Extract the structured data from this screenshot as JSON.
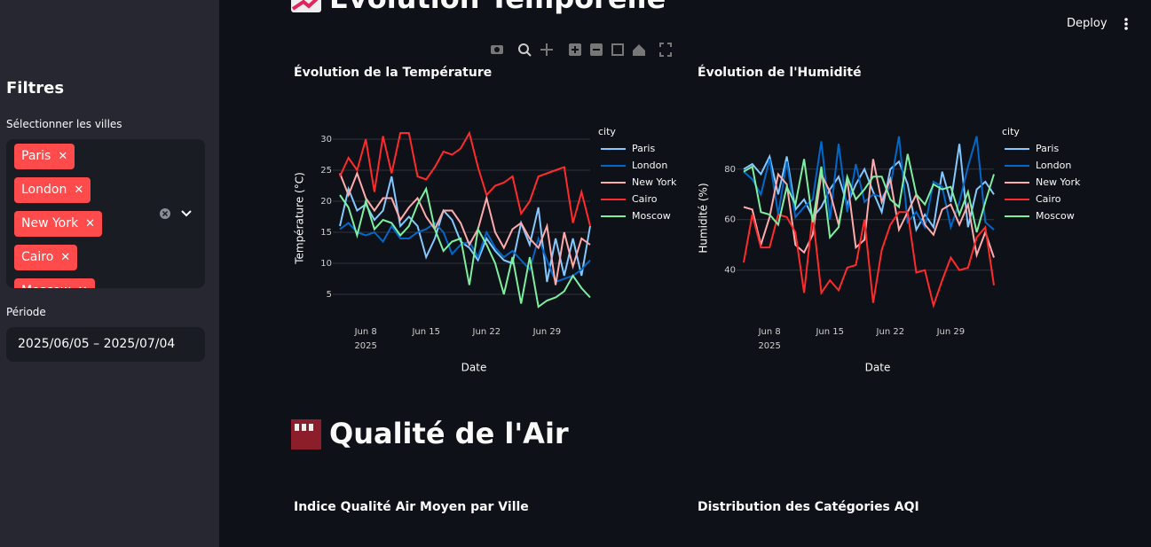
{
  "sidebar": {
    "title": "Filtres",
    "cities_label": "Sélectionner les villes",
    "cities": [
      "Paris",
      "London",
      "New York",
      "Cairo",
      "Moscow"
    ],
    "period_label": "Période",
    "period": "2025/06/05 – 2025/07/04"
  },
  "header": {
    "deploy": "Deploy"
  },
  "sections": [
    {
      "heading": "Évolution Temporelle"
    },
    {
      "heading": "Qualité de l'Air",
      "subheadings": [
        "Indice Qualité Air Moyen par Ville",
        "Distribution des Catégories AQI"
      ]
    }
  ],
  "chart_data": [
    {
      "type": "line",
      "title": "Évolution de la Température",
      "x_label": "Date",
      "y_label": "Température (°C)",
      "legend_title": "city",
      "x": [
        "2025-06-05",
        "2025-06-06",
        "2025-06-07",
        "2025-06-08",
        "2025-06-09",
        "2025-06-10",
        "2025-06-11",
        "2025-06-12",
        "2025-06-13",
        "2025-06-14",
        "2025-06-15",
        "2025-06-16",
        "2025-06-17",
        "2025-06-18",
        "2025-06-19",
        "2025-06-20",
        "2025-06-21",
        "2025-06-22",
        "2025-06-23",
        "2025-06-24",
        "2025-06-25",
        "2025-06-26",
        "2025-06-27",
        "2025-06-28",
        "2025-06-29",
        "2025-06-30",
        "2025-07-01",
        "2025-07-02",
        "2025-07-03",
        "2025-07-04"
      ],
      "xlim": [
        "2025-06-05",
        "2025-07-04"
      ],
      "xticks": [
        {
          "value": "2025-06-08",
          "label": "Jun 8",
          "sublabel": "2025"
        },
        {
          "value": "2025-06-15",
          "label": "Jun 15"
        },
        {
          "value": "2025-06-22",
          "label": "Jun 22"
        },
        {
          "value": "2025-06-29",
          "label": "Jun 29"
        }
      ],
      "ylim": [
        3,
        32.5
      ],
      "yticks": [
        5,
        10,
        15,
        20,
        25,
        30
      ],
      "grid": true,
      "series": [
        {
          "name": "Paris",
          "color": "#83c9ff",
          "values": [
            16,
            22,
            18.5,
            19.5,
            17,
            18.5,
            24,
            16,
            17.5,
            16,
            11,
            14,
            18.5,
            17,
            13.5,
            12.5,
            10.5,
            14,
            12,
            10.5,
            10,
            16.5,
            13,
            19,
            7,
            14,
            8,
            14,
            8,
            16
          ]
        },
        {
          "name": "London",
          "color": "#0068c9",
          "values": [
            15.5,
            16.5,
            15,
            14.5,
            15,
            13.5,
            16,
            14,
            14,
            15,
            15.5,
            16.5,
            15,
            11.5,
            13,
            13.5,
            11,
            15,
            12.5,
            11,
            12,
            10.5,
            9,
            14,
            10.5,
            7,
            7.5,
            8,
            9,
            10.5
          ]
        },
        {
          "name": "New York",
          "color": "#ffabab",
          "values": [
            24.5,
            21,
            24.5,
            20.5,
            18.5,
            20.5,
            20.5,
            17,
            19,
            20.5,
            17.5,
            15.5,
            18.5,
            18.5,
            16.5,
            13,
            15.5,
            20.5,
            15,
            12.5,
            15.5,
            16.5,
            14,
            12.5,
            16,
            6.5,
            15,
            9.5,
            14,
            13
          ]
        },
        {
          "name": "Cairo",
          "color": "#ff2b2b",
          "values": [
            24,
            27,
            25,
            30,
            21.5,
            30.5,
            24.5,
            31,
            31,
            24,
            23.5,
            25.5,
            28,
            27.5,
            28.5,
            31,
            25.5,
            21,
            22.5,
            23,
            24,
            18,
            20,
            24,
            24.5,
            25,
            25.5,
            16.5,
            21.5,
            16
          ]
        },
        {
          "name": "Moscow",
          "color": "#7defa1",
          "values": [
            21,
            19,
            14.5,
            20,
            15.5,
            17,
            16.5,
            14.5,
            16,
            19.5,
            22,
            15.5,
            12,
            13.5,
            14,
            6.5,
            15.5,
            13,
            10,
            5,
            11,
            3.5,
            11,
            3,
            4,
            4.5,
            5.5,
            8,
            6,
            4.5
          ]
        }
      ]
    },
    {
      "type": "line",
      "title": "Évolution de l'Humidité",
      "x_label": "Date",
      "y_label": "Humidité (%)",
      "legend_title": "city",
      "x": [
        "2025-06-05",
        "2025-06-06",
        "2025-06-07",
        "2025-06-08",
        "2025-06-09",
        "2025-06-10",
        "2025-06-11",
        "2025-06-12",
        "2025-06-13",
        "2025-06-14",
        "2025-06-15",
        "2025-06-16",
        "2025-06-17",
        "2025-06-18",
        "2025-06-19",
        "2025-06-20",
        "2025-06-21",
        "2025-06-22",
        "2025-06-23",
        "2025-06-24",
        "2025-06-25",
        "2025-06-26",
        "2025-06-27",
        "2025-06-28",
        "2025-06-29",
        "2025-06-30",
        "2025-07-01",
        "2025-07-02",
        "2025-07-03",
        "2025-07-04"
      ],
      "xlim": [
        "2025-06-05",
        "2025-07-04"
      ],
      "xticks": [
        {
          "value": "2025-06-08",
          "label": "Jun 8",
          "sublabel": "2025"
        },
        {
          "value": "2025-06-15",
          "label": "Jun 15"
        },
        {
          "value": "2025-06-22",
          "label": "Jun 22"
        },
        {
          "value": "2025-06-29",
          "label": "Jun 29"
        }
      ],
      "ylim": [
        25.5,
        98
      ],
      "yticks": [
        40,
        60,
        80
      ],
      "grid": true,
      "series": [
        {
          "name": "Paris",
          "color": "#83c9ff",
          "values": [
            80,
            82,
            78,
            85,
            70,
            85,
            64,
            68,
            61,
            65,
            72,
            77,
            66,
            74,
            80,
            71,
            63,
            80,
            83,
            74,
            56,
            62,
            57,
            79,
            67,
            90,
            57,
            72,
            75,
            70
          ]
        },
        {
          "name": "London",
          "color": "#0068c9",
          "values": [
            79,
            76,
            70,
            84,
            62,
            83,
            61,
            65,
            68,
            91,
            60,
            90,
            63,
            82,
            67,
            70,
            69,
            73,
            93,
            59,
            63,
            57,
            75,
            73,
            57,
            67,
            81,
            93,
            59,
            56
          ]
        },
        {
          "name": "New York",
          "color": "#ffabab",
          "values": [
            65,
            64,
            50,
            61,
            78,
            74,
            50,
            47,
            54,
            78,
            71,
            58,
            76,
            49,
            52,
            84,
            67,
            76,
            56,
            63,
            70,
            58,
            54,
            64,
            66,
            58,
            66,
            46,
            55,
            45
          ]
        },
        {
          "name": "Cairo",
          "color": "#ff2b2b",
          "values": [
            43,
            62,
            49,
            49,
            62,
            61,
            55,
            31,
            62,
            31,
            36,
            32,
            41,
            42,
            60,
            27,
            48,
            58,
            63,
            63,
            39,
            40,
            26,
            36,
            45,
            40,
            41,
            53,
            57,
            34
          ]
        },
        {
          "name": "Moscow",
          "color": "#7defa1",
          "values": [
            79,
            81,
            63,
            62,
            58,
            73,
            66,
            84,
            59,
            81,
            53,
            57,
            77,
            68,
            72,
            77,
            77,
            68,
            65,
            86,
            70,
            66,
            74,
            72,
            73,
            62,
            71,
            55,
            67,
            78
          ]
        }
      ]
    }
  ]
}
